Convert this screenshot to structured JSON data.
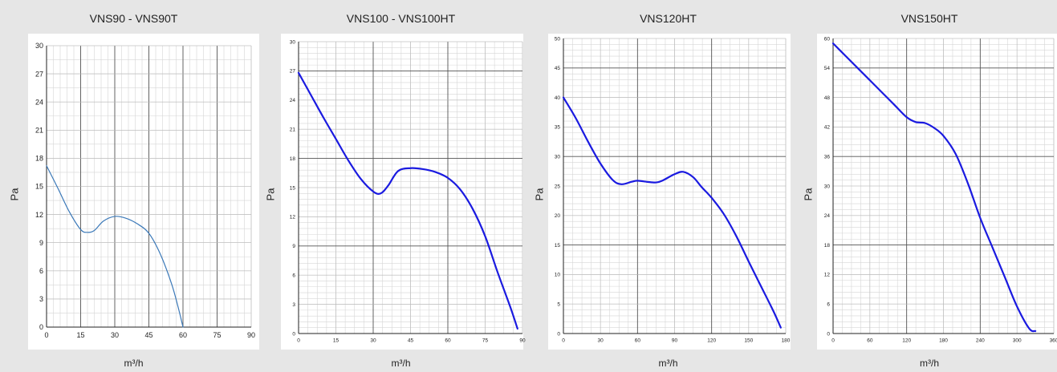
{
  "chart_data": [
    {
      "type": "line",
      "title": "VNS90 - VNS90T",
      "xlabel": "m³/h",
      "ylabel": "Pa",
      "xlim": [
        0,
        90
      ],
      "ylim": [
        0,
        30
      ],
      "xticks": [
        0,
        15,
        30,
        45,
        60,
        75,
        90
      ],
      "yticks": [
        0,
        3,
        6,
        9,
        12,
        15,
        18,
        21,
        24,
        27,
        30
      ],
      "grid": true,
      "series": [
        {
          "color": "#3a78b8",
          "x": [
            0,
            5,
            10,
            15,
            18,
            21,
            25,
            30,
            35,
            40,
            45,
            50,
            55,
            58,
            60
          ],
          "y": [
            17.2,
            14.8,
            12.3,
            10.4,
            10.1,
            10.3,
            11.3,
            11.8,
            11.6,
            11.0,
            10.0,
            7.8,
            4.6,
            2.0,
            0
          ]
        }
      ]
    },
    {
      "type": "line",
      "title": "VNS100 - VNS100HT",
      "xlabel": "m³/h",
      "ylabel": "Pa",
      "xlim": [
        0,
        90
      ],
      "ylim": [
        0,
        30
      ],
      "xticks": [
        0,
        15,
        30,
        45,
        60,
        75,
        90
      ],
      "yticks": [
        0,
        3,
        6,
        9,
        12,
        15,
        18,
        21,
        24,
        27,
        30
      ],
      "grid": true,
      "series": [
        {
          "color": "#1a1ae0",
          "x": [
            0,
            5,
            10,
            15,
            20,
            25,
            30,
            33,
            36,
            40,
            45,
            50,
            55,
            60,
            65,
            70,
            75,
            80,
            85,
            88
          ],
          "y": [
            26.8,
            24.5,
            22.2,
            20.0,
            17.8,
            15.9,
            14.6,
            14.4,
            15.2,
            16.7,
            17.0,
            16.9,
            16.6,
            16.0,
            14.8,
            12.8,
            10.0,
            6.3,
            2.8,
            0.5
          ]
        }
      ]
    },
    {
      "type": "line",
      "title": "VNS120HT",
      "xlabel": "m³/h",
      "ylabel": "Pa",
      "xlim": [
        0,
        180
      ],
      "ylim": [
        0,
        50
      ],
      "xticks": [
        0,
        30,
        60,
        90,
        120,
        150,
        180
      ],
      "yticks": [
        0,
        5,
        10,
        15,
        20,
        25,
        30,
        35,
        40,
        45,
        50
      ],
      "grid": true,
      "series": [
        {
          "color": "#1a1ae0",
          "x": [
            0,
            10,
            20,
            30,
            40,
            47,
            55,
            60,
            68,
            75,
            80,
            90,
            97,
            105,
            112,
            120,
            130,
            140,
            150,
            160,
            170,
            176
          ],
          "y": [
            40.0,
            36.5,
            32.5,
            28.8,
            26.0,
            25.3,
            25.7,
            25.9,
            25.7,
            25.6,
            25.9,
            27.0,
            27.4,
            26.5,
            24.8,
            23.0,
            20.2,
            16.5,
            12.2,
            8.0,
            3.8,
            1.0
          ]
        }
      ]
    },
    {
      "type": "line",
      "title": "VNS150HT",
      "xlabel": "m³/h",
      "ylabel": "Pa",
      "xlim": [
        0,
        360
      ],
      "ylim": [
        0,
        60
      ],
      "xticks": [
        0,
        60,
        120,
        180,
        240,
        300,
        360
      ],
      "yticks": [
        0,
        6,
        12,
        18,
        24,
        30,
        36,
        42,
        48,
        54,
        60
      ],
      "grid": true,
      "series": [
        {
          "color": "#1a1ae0",
          "x": [
            0,
            20,
            40,
            60,
            80,
            100,
            120,
            135,
            150,
            165,
            180,
            200,
            220,
            240,
            260,
            280,
            300,
            320,
            330
          ],
          "y": [
            59,
            56.5,
            54,
            51.5,
            49,
            46.5,
            44.0,
            43.0,
            42.8,
            41.8,
            40.2,
            36.5,
            30.5,
            23.5,
            17.5,
            11.5,
            5.5,
            1.0,
            0.5
          ]
        }
      ]
    }
  ]
}
